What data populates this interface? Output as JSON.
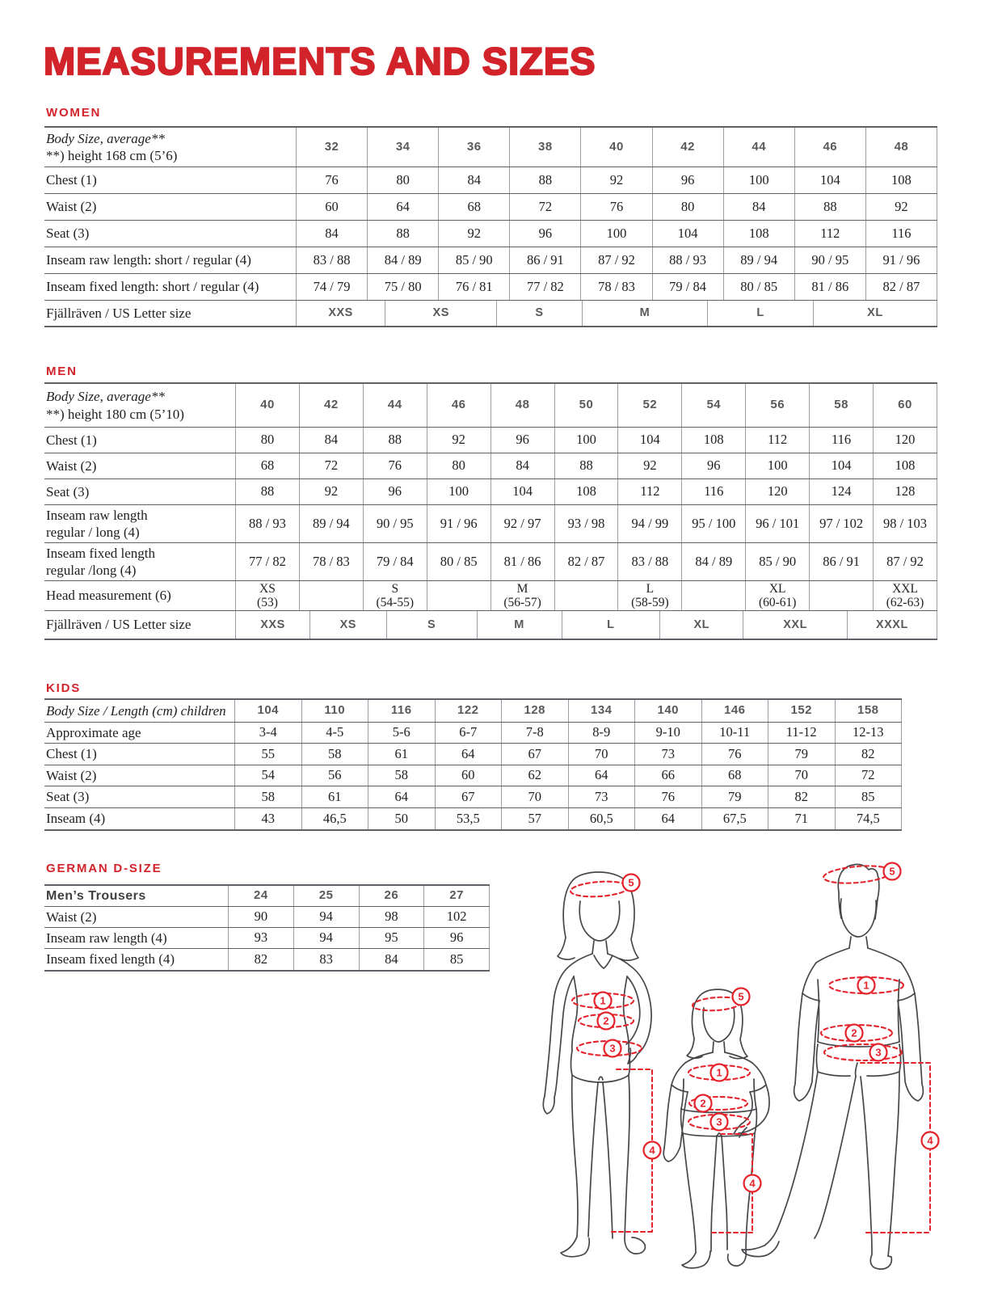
{
  "page": {
    "title": "MEASUREMENTS AND SIZES"
  },
  "colors": {
    "accent_red": "#d2232a",
    "figure_red": "#e5232b",
    "header_gray": "#58595b",
    "ink": "#232120",
    "line_dark": "#606166",
    "line_light": "#9b9da1"
  },
  "figures": {
    "markers": {
      "chest": "1",
      "waist": "2",
      "seat": "3",
      "inseam": "4",
      "head": "5"
    }
  },
  "tables": [
    {
      "id": "women",
      "section_label": "WOMEN",
      "rows": [
        {
          "kind": "sizes",
          "label_lines": [
            "Body Size, average**",
            "**) height 168 cm (5’6)"
          ],
          "cells": [
            "32",
            "34",
            "36",
            "38",
            "40",
            "42",
            "44",
            "46",
            "48"
          ]
        },
        {
          "kind": "data",
          "label": "Chest (1)",
          "cells": [
            "76",
            "80",
            "84",
            "88",
            "92",
            "96",
            "100",
            "104",
            "108"
          ]
        },
        {
          "kind": "data",
          "label": "Waist (2)",
          "cells": [
            "60",
            "64",
            "68",
            "72",
            "76",
            "80",
            "84",
            "88",
            "92"
          ]
        },
        {
          "kind": "data",
          "label": "Seat (3)",
          "cells": [
            "84",
            "88",
            "92",
            "96",
            "100",
            "104",
            "108",
            "112",
            "116"
          ]
        },
        {
          "kind": "data",
          "label": "Inseam raw length: short / regular (4)",
          "cells": [
            "83 / 88",
            "84 / 89",
            "85 / 90",
            "86 / 91",
            "87 / 92",
            "88 / 93",
            "89 / 94",
            "90 / 95",
            "91 / 96"
          ]
        },
        {
          "kind": "data",
          "label": "Inseam fixed length: short / regular (4)",
          "cells": [
            "74 / 79",
            "75 / 80",
            "76 / 81",
            "77 / 82",
            "78 / 83",
            "79 / 84",
            "80 / 85",
            "81 / 86",
            "82 / 87"
          ]
        },
        {
          "kind": "letter",
          "label": "Fjällräven / US Letter size",
          "cells": [
            {
              "t": "XXS",
              "w": 13.9
            },
            {
              "t": "XS",
              "w": 17.4
            },
            {
              "t": "S",
              "w": 13.3
            },
            {
              "t": "M",
              "w": 19.6
            },
            {
              "t": "L",
              "w": 16.5
            },
            {
              "t": "XL",
              "w": 19.3
            }
          ]
        }
      ]
    },
    {
      "id": "men",
      "section_label": "MEN",
      "rows": [
        {
          "kind": "sizes",
          "label_lines": [
            "Body Size, average**",
            "**) height 180 cm (5’10)"
          ],
          "cells": [
            "40",
            "42",
            "44",
            "46",
            "48",
            "50",
            "52",
            "54",
            "56",
            "58",
            "60"
          ]
        },
        {
          "kind": "data",
          "label": "Chest (1)",
          "cells": [
            "80",
            "84",
            "88",
            "92",
            "96",
            "100",
            "104",
            "108",
            "112",
            "116",
            "120"
          ]
        },
        {
          "kind": "data",
          "label": "Waist (2)",
          "cells": [
            "68",
            "72",
            "76",
            "80",
            "84",
            "88",
            "92",
            "96",
            "100",
            "104",
            "108"
          ]
        },
        {
          "kind": "data",
          "label": "Seat (3)",
          "cells": [
            "88",
            "92",
            "96",
            "100",
            "104",
            "108",
            "112",
            "116",
            "120",
            "124",
            "128"
          ]
        },
        {
          "kind": "data2",
          "label_lines": [
            "Inseam raw length",
            "regular / long (4)"
          ],
          "cells": [
            "88 / 93",
            "89 / 94",
            "90 / 95",
            "91 / 96",
            "92 / 97",
            "93 / 98",
            "94 / 99",
            "95 / 100",
            "96 / 101",
            "97 / 102",
            "98 / 103"
          ]
        },
        {
          "kind": "data2",
          "label_lines": [
            "Inseam fixed length",
            "regular /long (4)"
          ],
          "cells": [
            "77 / 82",
            "78 / 83",
            "79 / 84",
            "80 / 85",
            "81 / 86",
            "82 / 87",
            "83 / 88",
            "84 / 89",
            "85 / 90",
            "86 / 91",
            "87 / 92"
          ]
        },
        {
          "kind": "twoline",
          "label": "Head measurement (6)",
          "cells": [
            [
              "XS",
              "(53)"
            ],
            [
              "",
              ""
            ],
            [
              "S",
              "(54-55)"
            ],
            [
              "",
              ""
            ],
            [
              "M",
              "(56-57)"
            ],
            [
              "",
              ""
            ],
            [
              "L",
              "(58-59)"
            ],
            [
              "",
              ""
            ],
            [
              "XL",
              "(60-61)"
            ],
            [
              "",
              ""
            ],
            [
              "XXL",
              "(62-63)"
            ]
          ]
        },
        {
          "kind": "letter",
          "label": "Fjällräven / US Letter size",
          "cells": [
            {
              "t": "XXS",
              "w": 10.6
            },
            {
              "t": "XS",
              "w": 10.9
            },
            {
              "t": "S",
              "w": 12.9
            },
            {
              "t": "M",
              "w": 12.1
            },
            {
              "t": "L",
              "w": 14.0
            },
            {
              "t": "XL",
              "w": 11.9
            },
            {
              "t": "XXL",
              "w": 14.8
            },
            {
              "t": "XXXL",
              "w": 12.8
            }
          ]
        }
      ]
    },
    {
      "id": "kids",
      "section_label": "KIDS",
      "rows": [
        {
          "kind": "sizes",
          "label_lines": [
            "Body Size / Length (cm) children"
          ],
          "cells": [
            "104",
            "110",
            "116",
            "122",
            "128",
            "134",
            "140",
            "146",
            "152",
            "158"
          ]
        },
        {
          "kind": "data",
          "label": "Approximate age",
          "cells": [
            "3-4",
            "4-5",
            "5-6",
            "6-7",
            "7-8",
            "8-9",
            "9-10",
            "10-11",
            "11-12",
            "12-13"
          ]
        },
        {
          "kind": "data",
          "label": "Chest (1)",
          "cells": [
            "55",
            "58",
            "61",
            "64",
            "67",
            "70",
            "73",
            "76",
            "79",
            "82"
          ]
        },
        {
          "kind": "data",
          "label": "Waist (2)",
          "cells": [
            "54",
            "56",
            "58",
            "60",
            "62",
            "64",
            "66",
            "68",
            "70",
            "72"
          ]
        },
        {
          "kind": "data",
          "label": "Seat (3)",
          "cells": [
            "58",
            "61",
            "64",
            "67",
            "70",
            "73",
            "76",
            "79",
            "82",
            "85"
          ]
        },
        {
          "kind": "data",
          "label": "Inseam (4)",
          "cells": [
            "43",
            "46,5",
            "50",
            "53,5",
            "57",
            "60,5",
            "64",
            "67,5",
            "71",
            "74,5"
          ]
        }
      ]
    },
    {
      "id": "german",
      "section_label": "GERMAN D-SIZE",
      "rows": [
        {
          "kind": "gheader",
          "label": "Men’s Trousers",
          "cells": [
            "24",
            "25",
            "26",
            "27"
          ]
        },
        {
          "kind": "data",
          "label": "Waist (2)",
          "cells": [
            "90",
            "94",
            "98",
            "102"
          ]
        },
        {
          "kind": "data",
          "label": "Inseam raw length (4)",
          "cells": [
            "93",
            "94",
            "95",
            "96"
          ]
        },
        {
          "kind": "data",
          "label": "Inseam fixed length (4)",
          "cells": [
            "82",
            "83",
            "84",
            "85"
          ]
        }
      ]
    }
  ]
}
